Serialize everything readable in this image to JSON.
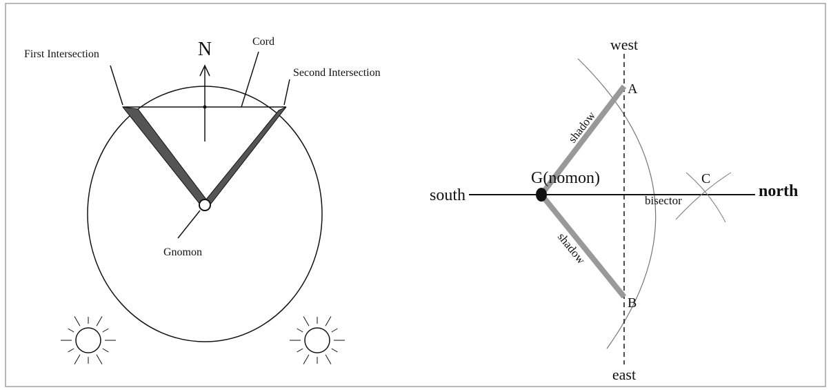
{
  "left_diagram": {
    "north": "N",
    "cord": "Cord",
    "first_intersection": "First Intersection",
    "second_intersection": "Second Intersection",
    "gnomon": "Gnomon"
  },
  "right_diagram": {
    "west": "west",
    "east": "east",
    "south": "south",
    "north": "north",
    "point_a": "A",
    "point_b": "B",
    "point_c": "C",
    "gnomon": "G(nomon)",
    "shadows": [
      "shadow",
      "shadow"
    ],
    "bisector": "bisector"
  }
}
